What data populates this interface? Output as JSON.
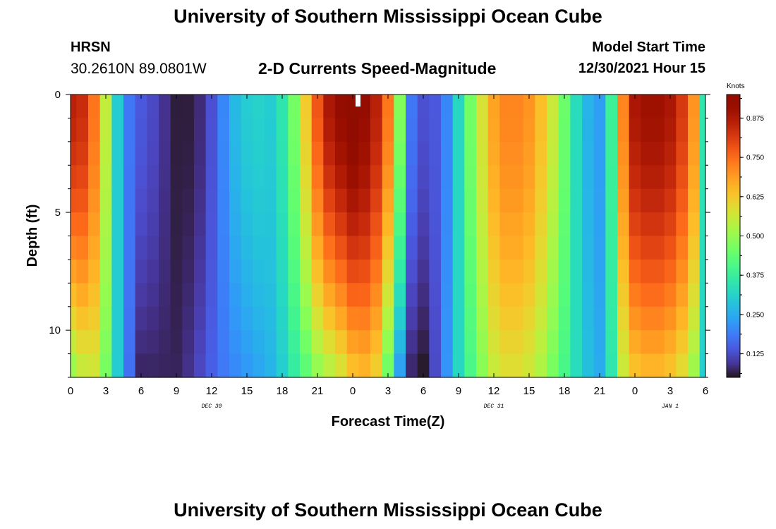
{
  "header": {
    "title": "University of Southern Mississippi Ocean Cube",
    "station": "HRSN",
    "coords": "30.2610N  89.0801W",
    "subtitle": "2-D Currents Speed-Magnitude",
    "model_start_label": "Model Start Time",
    "model_start_value": "12/30/2021 Hour 15"
  },
  "footer": {
    "title": "University of Southern Mississippi Ocean Cube"
  },
  "chart_data": {
    "type": "heatmap",
    "title": "2-D Currents Speed-Magnitude",
    "xlabel": "Forecast Time(Z)",
    "ylabel": "Depth (ft)",
    "x_tick_labels": [
      "0",
      "3",
      "6",
      "9",
      "12",
      "15",
      "18",
      "21",
      "0",
      "3",
      "6",
      "9",
      "12",
      "15",
      "18",
      "21",
      "0",
      "3",
      "6"
    ],
    "x_hours": [
      0,
      3,
      6,
      9,
      12,
      15,
      18,
      21,
      24,
      27,
      30,
      33,
      36,
      39,
      42,
      45,
      48,
      51,
      54
    ],
    "x_range_hours": [
      0,
      54
    ],
    "date_labels": [
      {
        "label": "DEC 30",
        "at_hour": 12
      },
      {
        "label": "DEC 31",
        "at_hour": 36
      },
      {
        "label": "JAN 1",
        "at_hour": 51
      }
    ],
    "y_ticks": [
      0,
      5,
      10
    ],
    "y_range_ft": [
      0,
      12
    ],
    "y_inverted": true,
    "colorbar": {
      "title": "Knots",
      "ticks": [
        0.125,
        0.25,
        0.375,
        0.5,
        0.625,
        0.75,
        0.875
      ],
      "tick_labels": [
        "0.125",
        "0.250",
        "0.375",
        "0.500",
        "0.625",
        "0.750",
        "0.875"
      ],
      "range": [
        0.05,
        0.95
      ],
      "colormap": "turbo"
    },
    "columns_hours": [
      0,
      1,
      2,
      3,
      4,
      5,
      6,
      7,
      8,
      9,
      10,
      11,
      12,
      13,
      14,
      15,
      16,
      17,
      18,
      19,
      20,
      21,
      22,
      23,
      24,
      25,
      26,
      27,
      28,
      29,
      30,
      31,
      32,
      33,
      34,
      35,
      36,
      37,
      38,
      39,
      40,
      41,
      42,
      43,
      44,
      45,
      46,
      47,
      48,
      49,
      50,
      51,
      52,
      53,
      54
    ],
    "surface_speed_knots": [
      0.86,
      0.84,
      0.74,
      0.55,
      0.3,
      0.18,
      0.14,
      0.12,
      0.09,
      0.06,
      0.06,
      0.08,
      0.13,
      0.2,
      0.27,
      0.3,
      0.31,
      0.3,
      0.35,
      0.46,
      0.62,
      0.78,
      0.88,
      0.92,
      0.95,
      0.92,
      0.86,
      0.74,
      0.48,
      0.18,
      0.13,
      0.14,
      0.2,
      0.32,
      0.46,
      0.58,
      0.68,
      0.72,
      0.72,
      0.7,
      0.64,
      0.56,
      0.45,
      0.33,
      0.26,
      0.23,
      0.38,
      0.72,
      0.88,
      0.9,
      0.9,
      0.88,
      0.82,
      0.7,
      0.35
    ],
    "bottom_speed_knots": [
      0.48,
      0.54,
      0.56,
      0.46,
      0.3,
      0.17,
      0.07,
      0.07,
      0.07,
      0.07,
      0.09,
      0.12,
      0.15,
      0.18,
      0.2,
      0.22,
      0.24,
      0.26,
      0.3,
      0.36,
      0.42,
      0.48,
      0.52,
      0.56,
      0.62,
      0.64,
      0.6,
      0.44,
      0.22,
      0.07,
      0.05,
      0.12,
      0.22,
      0.32,
      0.4,
      0.48,
      0.55,
      0.58,
      0.58,
      0.56,
      0.52,
      0.46,
      0.4,
      0.33,
      0.28,
      0.25,
      0.35,
      0.55,
      0.62,
      0.64,
      0.64,
      0.62,
      0.58,
      0.5,
      0.3
    ]
  }
}
